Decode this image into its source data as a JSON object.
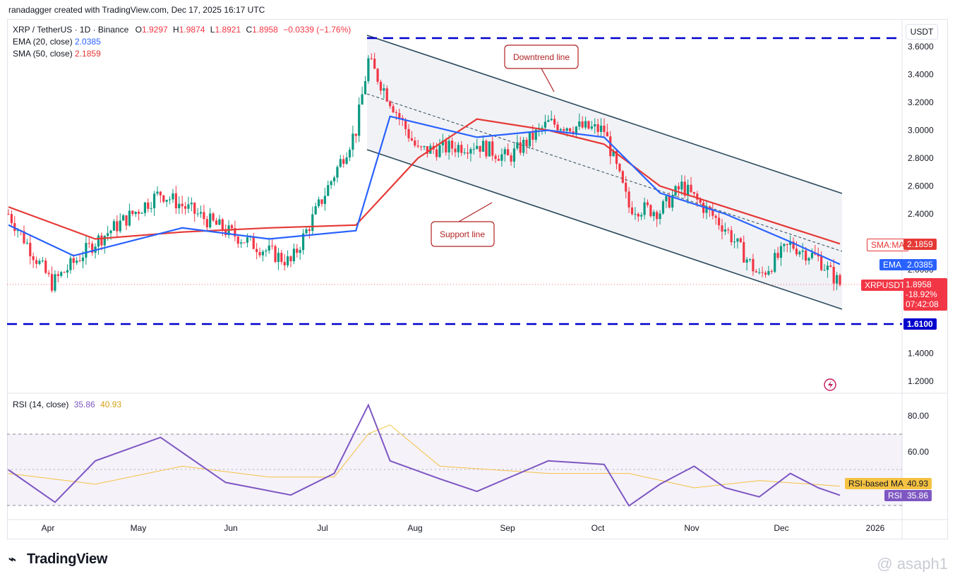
{
  "header": {
    "credit": "ranadagger created with TradingView.com, Dec 17, 2025 16:17 UTC"
  },
  "legend": {
    "symbol": "XRP / TetherUS · 1D · Binance",
    "o_label": "O",
    "o_value": "1.9297",
    "h_label": "H",
    "h_value": "1.9874",
    "l_label": "L",
    "l_value": "1.8921",
    "c_label": "C",
    "c_value": "1.8958",
    "change": "−0.0339 (−1.76%)",
    "ema_label": "EMA (20, close)",
    "ema_value": "2.0385",
    "sma_label": "SMA (50, close)",
    "sma_value": "2.1859",
    "rsi_label": "RSI (14, close)",
    "rsi_value": "35.86",
    "rsi_ma_value": "40.93"
  },
  "price_axis": {
    "currency": "USDT",
    "ticks": [
      "3.6000",
      "3.4000",
      "3.2000",
      "3.0000",
      "2.8000",
      "2.6000",
      "2.4000",
      "2.0000",
      "1.4000",
      "1.2000"
    ],
    "level_label": "1.6100"
  },
  "rsi_axis": {
    "ticks": [
      "80.00",
      "60.00"
    ]
  },
  "time_axis": {
    "ticks": [
      "Apr",
      "May",
      "Jun",
      "Jul",
      "Aug",
      "Sep",
      "Oct",
      "Nov",
      "Dec",
      "2026"
    ]
  },
  "badges": {
    "sma_label": "SMA:MA",
    "sma_value": "2.1859",
    "ema_label": "EMA",
    "ema_value": "2.0385",
    "price_label": "XRPUSDT",
    "price_value": "1.8958",
    "price_change": "-18.92%",
    "countdown": "07:42:08",
    "rsi_ma_label": "RSI-based MA",
    "rsi_ma_value": "40.93",
    "rsi_label": "RSI",
    "rsi_value": "35.86"
  },
  "annotations": {
    "downtrend": "Downtrend line",
    "support": "Support line"
  },
  "branding": {
    "logo": "TradingView",
    "watermark": "@ asaph1"
  },
  "colors": {
    "up": "#089981",
    "down": "#f23645",
    "ema": "#2962ff",
    "sma": "#e53935",
    "rsi": "#7e57c2",
    "rsi_ma": "#f5c242",
    "level": "#0000cc",
    "channel": "#2a4a5a",
    "annotation": "#b22222"
  },
  "chart_data": [
    {
      "type": "candlestick",
      "title": "XRP / TetherUS · 1D · Binance",
      "x_range": [
        "2025-03-24",
        "2025-12-17"
      ],
      "ylim": [
        1.15,
        3.68
      ],
      "series": [
        {
          "name": "XRPUSDT",
          "x": [
            "2025-03-24",
            "2025-04-07",
            "2025-04-21",
            "2025-05-12",
            "2025-06-02",
            "2025-06-23",
            "2025-07-14",
            "2025-07-18",
            "2025-08-03",
            "2025-08-22",
            "2025-09-01",
            "2025-09-14",
            "2025-10-02",
            "2025-10-10",
            "2025-10-20",
            "2025-10-27",
            "2025-11-10",
            "2025-11-21",
            "2025-12-01",
            "2025-12-10",
            "2025-12-17"
          ],
          "y": [
            2.4,
            1.9,
            2.2,
            2.55,
            2.28,
            2.05,
            3.0,
            3.5,
            2.85,
            2.9,
            2.8,
            3.05,
            3.0,
            2.45,
            2.42,
            2.6,
            2.3,
            1.95,
            2.18,
            2.08,
            1.8958
          ]
        },
        {
          "name": "EMA",
          "x": [
            "2025-03-24",
            "2025-04-14",
            "2025-05-19",
            "2025-06-16",
            "2025-07-14",
            "2025-07-25",
            "2025-08-22",
            "2025-09-14",
            "2025-10-02",
            "2025-10-20",
            "2025-11-10",
            "2025-12-01",
            "2025-12-17"
          ],
          "y": [
            2.32,
            2.1,
            2.3,
            2.22,
            2.28,
            3.1,
            2.95,
            3.0,
            2.95,
            2.55,
            2.4,
            2.2,
            2.0385
          ]
        },
        {
          "name": "SMA",
          "x": [
            "2025-03-24",
            "2025-04-21",
            "2025-05-19",
            "2025-06-16",
            "2025-07-14",
            "2025-08-03",
            "2025-08-22",
            "2025-09-14",
            "2025-10-02",
            "2025-10-20",
            "2025-11-10",
            "2025-12-01",
            "2025-12-17"
          ],
          "y": [
            2.45,
            2.22,
            2.27,
            2.3,
            2.32,
            2.8,
            3.08,
            3.0,
            2.9,
            2.6,
            2.45,
            2.3,
            2.1859
          ]
        }
      ],
      "levels": [
        3.65,
        1.61
      ],
      "annotations": [
        "Downtrend line",
        "Support line"
      ]
    },
    {
      "type": "line",
      "title": "RSI (14, close)",
      "x_range": [
        "2025-03-24",
        "2025-12-17"
      ],
      "ylim": [
        25,
        95
      ],
      "series": [
        {
          "name": "RSI",
          "x": [
            "2025-03-24",
            "2025-04-08",
            "2025-04-21",
            "2025-05-12",
            "2025-06-02",
            "2025-06-23",
            "2025-07-07",
            "2025-07-18",
            "2025-07-25",
            "2025-08-10",
            "2025-08-22",
            "2025-09-14",
            "2025-10-02",
            "2025-10-10",
            "2025-10-20",
            "2025-10-31",
            "2025-11-10",
            "2025-11-21",
            "2025-12-01",
            "2025-12-10",
            "2025-12-17"
          ],
          "y": [
            50,
            32,
            55,
            68,
            43,
            36,
            48,
            86,
            55,
            45,
            38,
            55,
            53,
            30,
            42,
            52,
            40,
            35,
            48,
            40,
            35.86
          ]
        },
        {
          "name": "RSI-based MA",
          "x": [
            "2025-03-24",
            "2025-04-21",
            "2025-05-19",
            "2025-06-16",
            "2025-07-07",
            "2025-07-18",
            "2025-07-25",
            "2025-08-10",
            "2025-09-14",
            "2025-10-10",
            "2025-10-31",
            "2025-11-21",
            "2025-12-17"
          ],
          "y": [
            48,
            42,
            52,
            46,
            46,
            70,
            75,
            52,
            48,
            48,
            40,
            44,
            40.93
          ]
        }
      ],
      "levels": [
        70,
        50,
        30
      ]
    }
  ]
}
